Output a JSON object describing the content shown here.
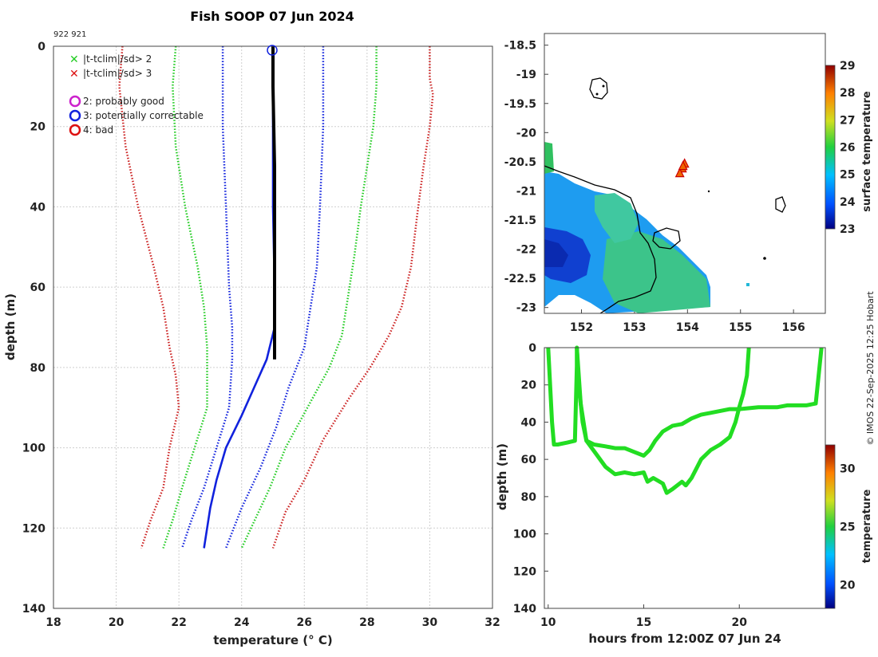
{
  "figure": {
    "title": "Fish SOOP 07 Jun 2024",
    "ids": "922 921",
    "credit": "© IMOS 22-Sep-2025 12:25 Hobart"
  },
  "chart_data": [
    {
      "type": "line",
      "name": "profile",
      "xlabel": "temperature (° C)",
      "ylabel": "depth (m)",
      "xlim": [
        18,
        32
      ],
      "ylim": [
        0,
        140
      ],
      "xticks": [
        "18",
        "20",
        "22",
        "24",
        "26",
        "28",
        "30",
        "32"
      ],
      "yticks": [
        "0",
        "20",
        "40",
        "60",
        "80",
        "100",
        "120",
        "140"
      ],
      "legend_entries": [
        "|t-tclim|/sd> 2",
        "|t-tclim|/sd> 3",
        "2: probably good",
        "3: potentially correctable",
        "4: bad"
      ],
      "legend_colors": [
        "#22cc22",
        "#dd1111",
        "#cc22cc",
        "#1122dd",
        "#dd1111"
      ],
      "series": [
        {
          "name": "clim-3sd-low",
          "color": "#cc2222",
          "style": "dotted",
          "points": [
            [
              20.2,
              0
            ],
            [
              20.1,
              10
            ],
            [
              20.3,
              25
            ],
            [
              20.7,
              40
            ],
            [
              21.2,
              55
            ],
            [
              21.5,
              65
            ],
            [
              21.7,
              75
            ],
            [
              21.9,
              82
            ],
            [
              22,
              90
            ],
            [
              21.7,
              100
            ],
            [
              21.5,
              110
            ],
            [
              21.1,
              118
            ],
            [
              20.8,
              125
            ]
          ]
        },
        {
          "name": "clim-2sd-low",
          "color": "#22cc22",
          "style": "dotted",
          "points": [
            [
              21.9,
              0
            ],
            [
              21.8,
              10
            ],
            [
              21.9,
              25
            ],
            [
              22.2,
              40
            ],
            [
              22.6,
              55
            ],
            [
              22.8,
              65
            ],
            [
              22.9,
              75
            ],
            [
              22.9,
              90
            ],
            [
              22.5,
              100
            ],
            [
              22.1,
              110
            ],
            [
              21.8,
              118
            ],
            [
              21.5,
              125
            ]
          ]
        },
        {
          "name": "clim-mean-low",
          "color": "#1122dd",
          "style": "dotted",
          "points": [
            [
              23.4,
              0
            ],
            [
              23.4,
              20
            ],
            [
              23.5,
              40
            ],
            [
              23.6,
              60
            ],
            [
              23.7,
              70
            ],
            [
              23.7,
              78
            ],
            [
              23.6,
              90
            ],
            [
              23.2,
              100
            ],
            [
              22.8,
              110
            ],
            [
              22.4,
              118
            ],
            [
              22.1,
              125
            ]
          ]
        },
        {
          "name": "profile-probe",
          "color": "#1122dd",
          "style": "solid",
          "points": [
            [
              25,
              0
            ],
            [
              25,
              20
            ],
            [
              25,
              40
            ],
            [
              25.05,
              60
            ],
            [
              25.05,
              70
            ],
            [
              24.8,
              78
            ],
            [
              24.4,
              85
            ],
            [
              24,
              92
            ],
            [
              23.5,
              100
            ],
            [
              23.2,
              108
            ],
            [
              23,
              115
            ],
            [
              22.8,
              125
            ]
          ]
        },
        {
          "name": "clim-mean-high",
          "color": "#1122dd",
          "style": "dotted",
          "points": [
            [
              26.6,
              0
            ],
            [
              26.6,
              20
            ],
            [
              26.5,
              40
            ],
            [
              26.4,
              55
            ],
            [
              26.2,
              65
            ],
            [
              26.0,
              75
            ],
            [
              25.5,
              85
            ],
            [
              25.1,
              95
            ],
            [
              24.6,
              105
            ],
            [
              24,
              115
            ],
            [
              23.5,
              125
            ]
          ]
        },
        {
          "name": "clim-2sd-high",
          "color": "#22cc22",
          "style": "dotted",
          "points": [
            [
              28.3,
              0
            ],
            [
              28.3,
              10
            ],
            [
              28.2,
              20
            ],
            [
              28,
              30
            ],
            [
              27.8,
              40
            ],
            [
              27.6,
              52
            ],
            [
              27.4,
              62
            ],
            [
              27.2,
              72
            ],
            [
              26.8,
              80
            ],
            [
              26.1,
              90
            ],
            [
              25.4,
              100
            ],
            [
              24.9,
              110
            ],
            [
              24.3,
              120
            ],
            [
              24,
              125
            ]
          ]
        },
        {
          "name": "clim-3sd-high",
          "color": "#cc2222",
          "style": "dotted",
          "points": [
            [
              30,
              0
            ],
            [
              30,
              8
            ],
            [
              30.1,
              12
            ],
            [
              30,
              20
            ],
            [
              29.8,
              30
            ],
            [
              29.6,
              42
            ],
            [
              29.4,
              55
            ],
            [
              29.1,
              65
            ],
            [
              28.7,
              72
            ],
            [
              28.1,
              80
            ],
            [
              27.4,
              88
            ],
            [
              26.6,
              98
            ],
            [
              26,
              108
            ],
            [
              25.4,
              116
            ],
            [
              25,
              125
            ]
          ]
        },
        {
          "name": "profile-flagged",
          "color": "#000000",
          "style": "thick",
          "points": [
            [
              25,
              0
            ],
            [
              25,
              10
            ],
            [
              25.05,
              30
            ],
            [
              25.05,
              50
            ],
            [
              25.05,
              70
            ],
            [
              25.05,
              78
            ]
          ]
        }
      ]
    },
    {
      "type": "heatmap",
      "name": "map",
      "xlim": [
        151.3,
        156.6
      ],
      "ylim": [
        -23.1,
        -18.3
      ],
      "xticks": [
        "152",
        "153",
        "154",
        "155",
        "156"
      ],
      "yticks": [
        "-18.5",
        "-19",
        "-19.5",
        "-20",
        "-20.5",
        "-21",
        "-21.5",
        "-22",
        "-22.5",
        "-23"
      ],
      "colorbar_label": "surface temperature",
      "colorbar_ticks": [
        "23",
        "24",
        "25",
        "26",
        "27",
        "28",
        "29"
      ],
      "colorbar_range": [
        23,
        29
      ],
      "marker_lon": 153.9,
      "marker_lat": -20.62
    },
    {
      "type": "line",
      "name": "track",
      "xlabel": "hours from 12:00Z 07 Jun 24",
      "ylabel": "depth (m)",
      "xlim": [
        9.8,
        24.5
      ],
      "ylim": [
        0,
        140
      ],
      "xticks": [
        "10",
        "15",
        "20"
      ],
      "yticks": [
        "0",
        "20",
        "40",
        "60",
        "80",
        "100",
        "120",
        "140"
      ],
      "colorbar_label": "temperature",
      "colorbar_ticks": [
        "20",
        "25",
        "30"
      ],
      "colorbar_range": [
        18,
        32
      ],
      "color": "#22dd22",
      "series": [
        {
          "name": "dive-track",
          "points": [
            [
              10,
              0
            ],
            [
              10.1,
              20
            ],
            [
              10.2,
              40
            ],
            [
              10.3,
              52
            ],
            [
              10.5,
              52
            ],
            [
              11,
              51
            ],
            [
              11.4,
              50
            ],
            [
              11.5,
              10
            ],
            [
              11.5,
              0
            ],
            [
              11.6,
              20
            ],
            [
              11.8,
              40
            ],
            [
              12,
              50
            ],
            [
              12.4,
              52
            ],
            [
              13,
              53
            ],
            [
              13.5,
              54
            ],
            [
              14,
              54
            ],
            [
              14.5,
              56
            ],
            [
              15,
              58
            ],
            [
              15.3,
              55
            ],
            [
              15.6,
              50
            ],
            [
              16,
              45
            ],
            [
              16.5,
              42
            ],
            [
              17,
              41
            ],
            [
              17.5,
              38
            ],
            [
              18,
              36
            ],
            [
              18.5,
              35
            ],
            [
              19,
              34
            ],
            [
              19.5,
              33
            ],
            [
              20,
              33
            ],
            [
              21,
              32
            ],
            [
              22,
              32
            ],
            [
              22.5,
              31
            ],
            [
              23,
              31
            ],
            [
              23.5,
              31
            ],
            [
              24,
              30
            ],
            [
              24.1,
              20
            ],
            [
              24.2,
              10
            ],
            [
              24.3,
              0
            ]
          ]
        },
        {
          "name": "dive-track-2",
          "points": [
            [
              11.5,
              0
            ],
            [
              11.7,
              30
            ],
            [
              12,
              50
            ],
            [
              12.5,
              57
            ],
            [
              13,
              64
            ],
            [
              13.5,
              68
            ],
            [
              14,
              67
            ],
            [
              14.5,
              68
            ],
            [
              15,
              67
            ],
            [
              15.2,
              72
            ],
            [
              15.5,
              70
            ],
            [
              16,
              73
            ],
            [
              16.2,
              78
            ],
            [
              16.5,
              76
            ],
            [
              17,
              72
            ],
            [
              17.2,
              74
            ],
            [
              17.5,
              70
            ],
            [
              18,
              60
            ],
            [
              18.5,
              55
            ],
            [
              19,
              52
            ],
            [
              19.5,
              48
            ],
            [
              19.8,
              40
            ],
            [
              20,
              32
            ],
            [
              20.2,
              25
            ],
            [
              20.4,
              15
            ],
            [
              20.5,
              0
            ]
          ]
        }
      ]
    }
  ]
}
